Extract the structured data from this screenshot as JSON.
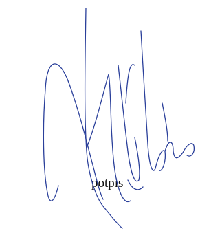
{
  "label": "potpis"
}
